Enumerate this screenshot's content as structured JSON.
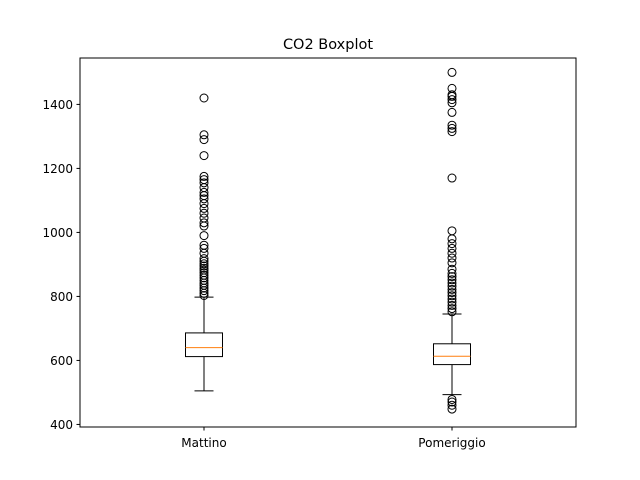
{
  "chart_data": {
    "type": "boxplot",
    "title": "CO2 Boxplot",
    "xlabel": "",
    "ylabel": "",
    "categories": [
      "Mattino",
      "Pomeriggio"
    ],
    "ylim": [
      392,
      1545
    ],
    "yticks": [
      400,
      600,
      800,
      1000,
      1200,
      1400
    ],
    "grid": false,
    "boxes": [
      {
        "name": "Mattino",
        "whisker_low": 505,
        "q1": 612,
        "median": 640,
        "q3": 686,
        "whisker_high": 798,
        "outliers": [
          803,
          810,
          818,
          826,
          835,
          842,
          850,
          858,
          866,
          874,
          882,
          888,
          895,
          902,
          910,
          918,
          935,
          950,
          960,
          990,
          1020,
          1030,
          1045,
          1060,
          1075,
          1090,
          1105,
          1115,
          1125,
          1140,
          1155,
          1165,
          1175,
          1240,
          1290,
          1305,
          1420
        ]
      },
      {
        "name": "Pomeriggio",
        "whisker_low": 493,
        "q1": 587,
        "median": 613,
        "q3": 652,
        "whisker_high": 745,
        "outliers": [
          448,
          460,
          470,
          478,
          752,
          762,
          772,
          782,
          792,
          802,
          812,
          822,
          832,
          842,
          852,
          862,
          872,
          885,
          905,
          920,
          935,
          950,
          965,
          980,
          1005,
          1170,
          1315,
          1325,
          1335,
          1375,
          1405,
          1415,
          1425,
          1430,
          1450,
          1500
        ]
      }
    ]
  },
  "colors": {
    "box": "#000000",
    "median": "#ff7f0e",
    "background": "#ffffff"
  }
}
